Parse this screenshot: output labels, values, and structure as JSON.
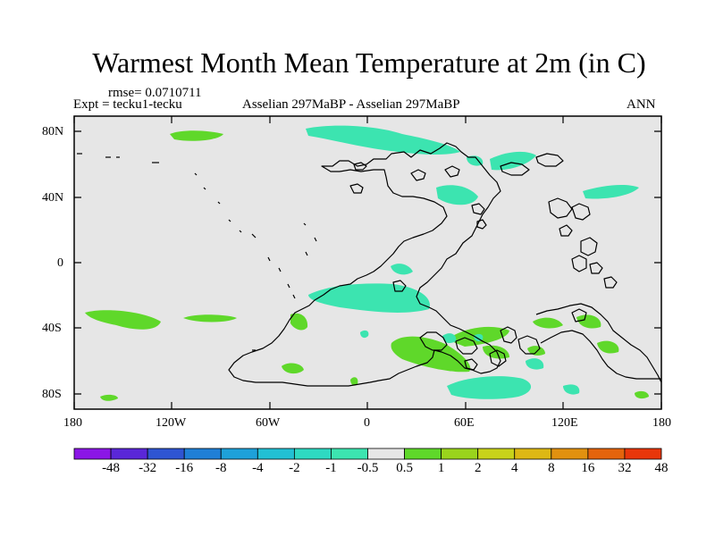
{
  "title": "Warmest Month Mean Temperature at 2m (in C)",
  "rmse_text": "rmse= 0.0710711",
  "expt_text": "Expt = tecku1-tecku",
  "comparison_text": "Asselian 297MaBP - Asselian 297MaBP",
  "period_text": "ANN",
  "lat_labels": [
    "80N",
    "40N",
    "0",
    "40S",
    "80S"
  ],
  "lon_labels": [
    "180",
    "120W",
    "60W",
    "0",
    "60E",
    "120E",
    "180"
  ],
  "colorbar": {
    "labels": [
      "-48",
      "-32",
      "-16",
      "-8",
      "-4",
      "-2",
      "-1",
      "-0.5",
      "0.5",
      "1",
      "2",
      "4",
      "8",
      "16",
      "32",
      "48"
    ],
    "colors": [
      "#8b16e6",
      "#5a27d8",
      "#2f55d2",
      "#1f7fd6",
      "#1ea1d9",
      "#22c0d4",
      "#2ed9c2",
      "#3ce4b0",
      "#e6e6e6",
      "#5fd82a",
      "#9ad41c",
      "#c8d21a",
      "#ddb814",
      "#e2910f",
      "#e4640c",
      "#e8360a"
    ]
  },
  "colors": {
    "background": "#e6e6e6",
    "positive_fill": "#5fd82a",
    "negative_fill": "#3ce4b0"
  }
}
